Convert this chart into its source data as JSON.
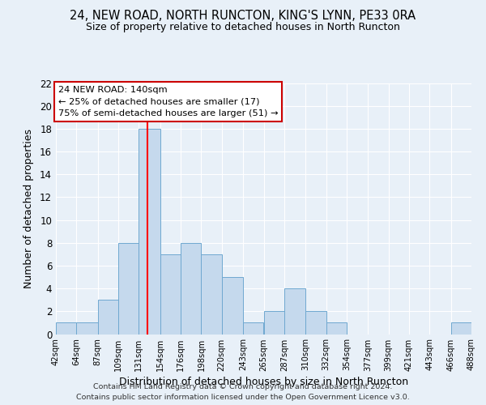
{
  "title": "24, NEW ROAD, NORTH RUNCTON, KING'S LYNN, PE33 0RA",
  "subtitle": "Size of property relative to detached houses in North Runcton",
  "xlabel": "Distribution of detached houses by size in North Runcton",
  "ylabel": "Number of detached properties",
  "bar_color": "#c5d9ed",
  "bar_edge_color": "#6fa8d0",
  "background_color": "#e8f0f8",
  "grid_color": "#ffffff",
  "bin_edges": [
    42,
    64,
    87,
    109,
    131,
    154,
    176,
    198,
    220,
    243,
    265,
    287,
    310,
    332,
    354,
    377,
    399,
    421,
    443,
    466,
    488
  ],
  "bin_labels": [
    "42sqm",
    "64sqm",
    "87sqm",
    "109sqm",
    "131sqm",
    "154sqm",
    "176sqm",
    "198sqm",
    "220sqm",
    "243sqm",
    "265sqm",
    "287sqm",
    "310sqm",
    "332sqm",
    "354sqm",
    "377sqm",
    "399sqm",
    "421sqm",
    "443sqm",
    "466sqm",
    "488sqm"
  ],
  "counts": [
    1,
    1,
    3,
    8,
    18,
    7,
    8,
    7,
    5,
    1,
    2,
    4,
    2,
    1,
    0,
    0,
    0,
    0,
    0,
    1
  ],
  "red_line_x": 140,
  "ylim": [
    0,
    22
  ],
  "yticks": [
    0,
    2,
    4,
    6,
    8,
    10,
    12,
    14,
    16,
    18,
    20,
    22
  ],
  "annotation_title": "24 NEW ROAD: 140sqm",
  "annotation_line1": "← 25% of detached houses are smaller (17)",
  "annotation_line2": "75% of semi-detached houses are larger (51) →",
  "footer_line1": "Contains HM Land Registry data © Crown copyright and database right 2024.",
  "footer_line2": "Contains public sector information licensed under the Open Government Licence v3.0."
}
